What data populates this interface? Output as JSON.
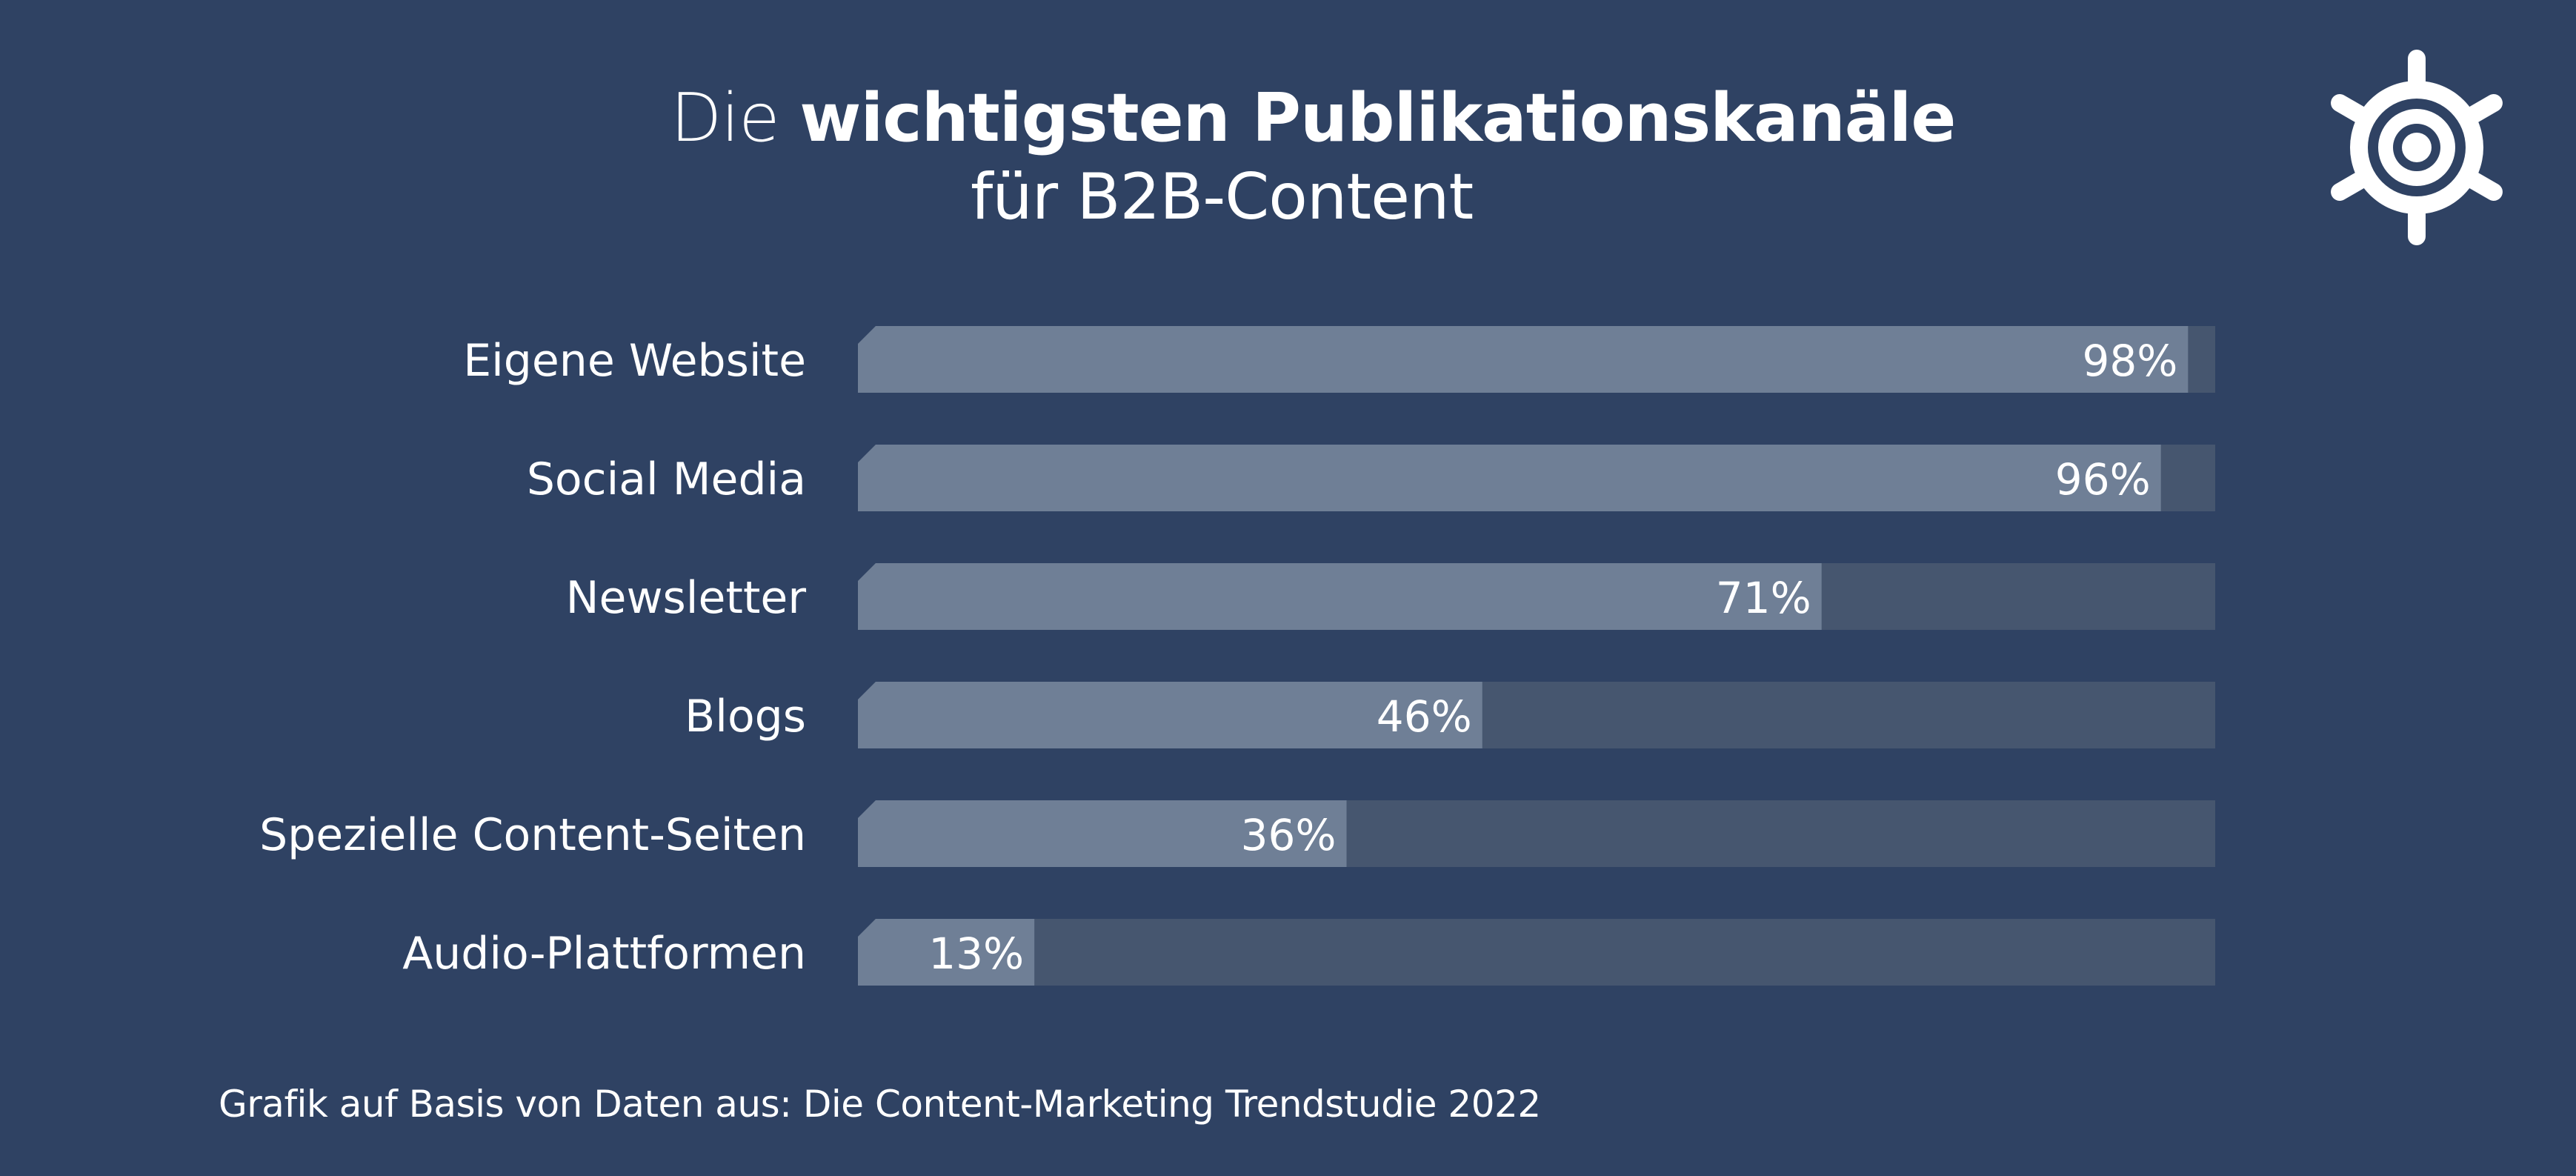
{
  "header": {
    "title_prefix": "Die",
    "title_bold": "wichtigsten Publikationskanäle",
    "subtitle": "für B2B-Content"
  },
  "logo": {
    "icon": "ship-wheel-icon"
  },
  "colors": {
    "background": "#2f4263",
    "bar_track": "#46566f",
    "bar_fill": "#6f7f96",
    "text": "#ffffff"
  },
  "chart_data": {
    "type": "bar",
    "orientation": "horizontal",
    "categories": [
      "Eigene Website",
      "Social Media",
      "Newsletter",
      "Blogs",
      "Spezielle Content-Seiten",
      "Audio-Plattformen"
    ],
    "values": [
      98,
      96,
      71,
      46,
      36,
      13
    ],
    "value_labels": [
      "98%",
      "96%",
      "71%",
      "46%",
      "36%",
      "13%"
    ],
    "xlim": [
      0,
      100
    ],
    "grid": false,
    "legend": "none"
  },
  "footer": {
    "source": "Grafik auf Basis von Daten aus: Die Content-Marketing Trendstudie 2022"
  }
}
